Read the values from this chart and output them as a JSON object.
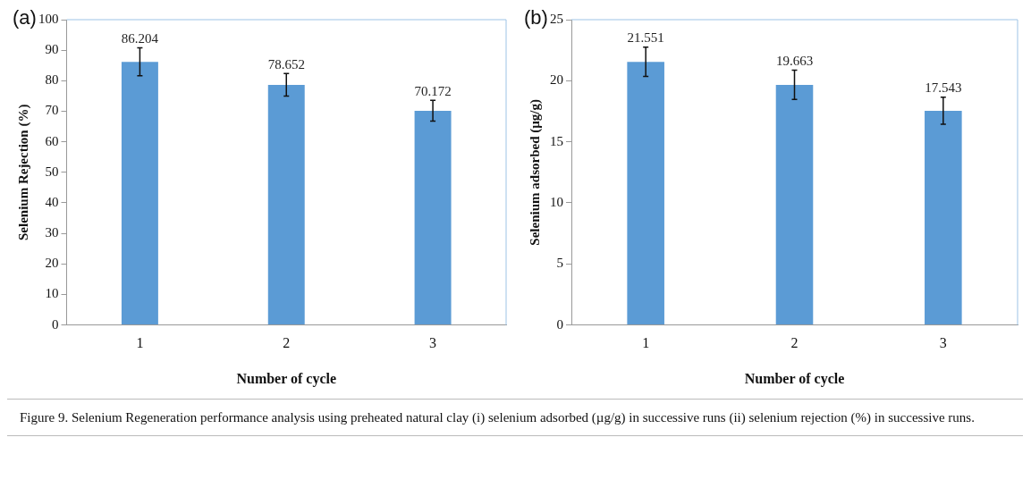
{
  "chart_data": [
    {
      "type": "bar",
      "title": "(a)",
      "xlabel": "Number of cycle",
      "ylabel": "Selenium Rejection (%)",
      "categories": [
        "1",
        "2",
        "3"
      ],
      "values": [
        86.204,
        78.652,
        70.172
      ],
      "errors": [
        4.6,
        3.7,
        3.4
      ],
      "color": "#5b9bd5",
      "ylim": [
        0,
        100
      ],
      "yticks": [
        0,
        10,
        20,
        30,
        40,
        50,
        60,
        70,
        80,
        90,
        100
      ],
      "data_labels": true
    },
    {
      "type": "bar",
      "title": "(b)",
      "xlabel": "Number of cycle",
      "ylabel": "Selenium adsorbed (µg/g)",
      "categories": [
        "1",
        "2",
        "3"
      ],
      "values": [
        21.551,
        19.663,
        17.543
      ],
      "errors": [
        1.2,
        1.2,
        1.1
      ],
      "color": "#5b9bd5",
      "ylim": [
        0,
        25
      ],
      "yticks": [
        0,
        5,
        10,
        15,
        20,
        25
      ],
      "data_labels": true,
      "annotations": [
        "Figure 9. Selenium Regeneration performance analysis using preheated natural clay (i) selenium adsorbed (µg/g) in successive runs (ii) selenium rejection (%) in successive runs."
      ]
    }
  ]
}
